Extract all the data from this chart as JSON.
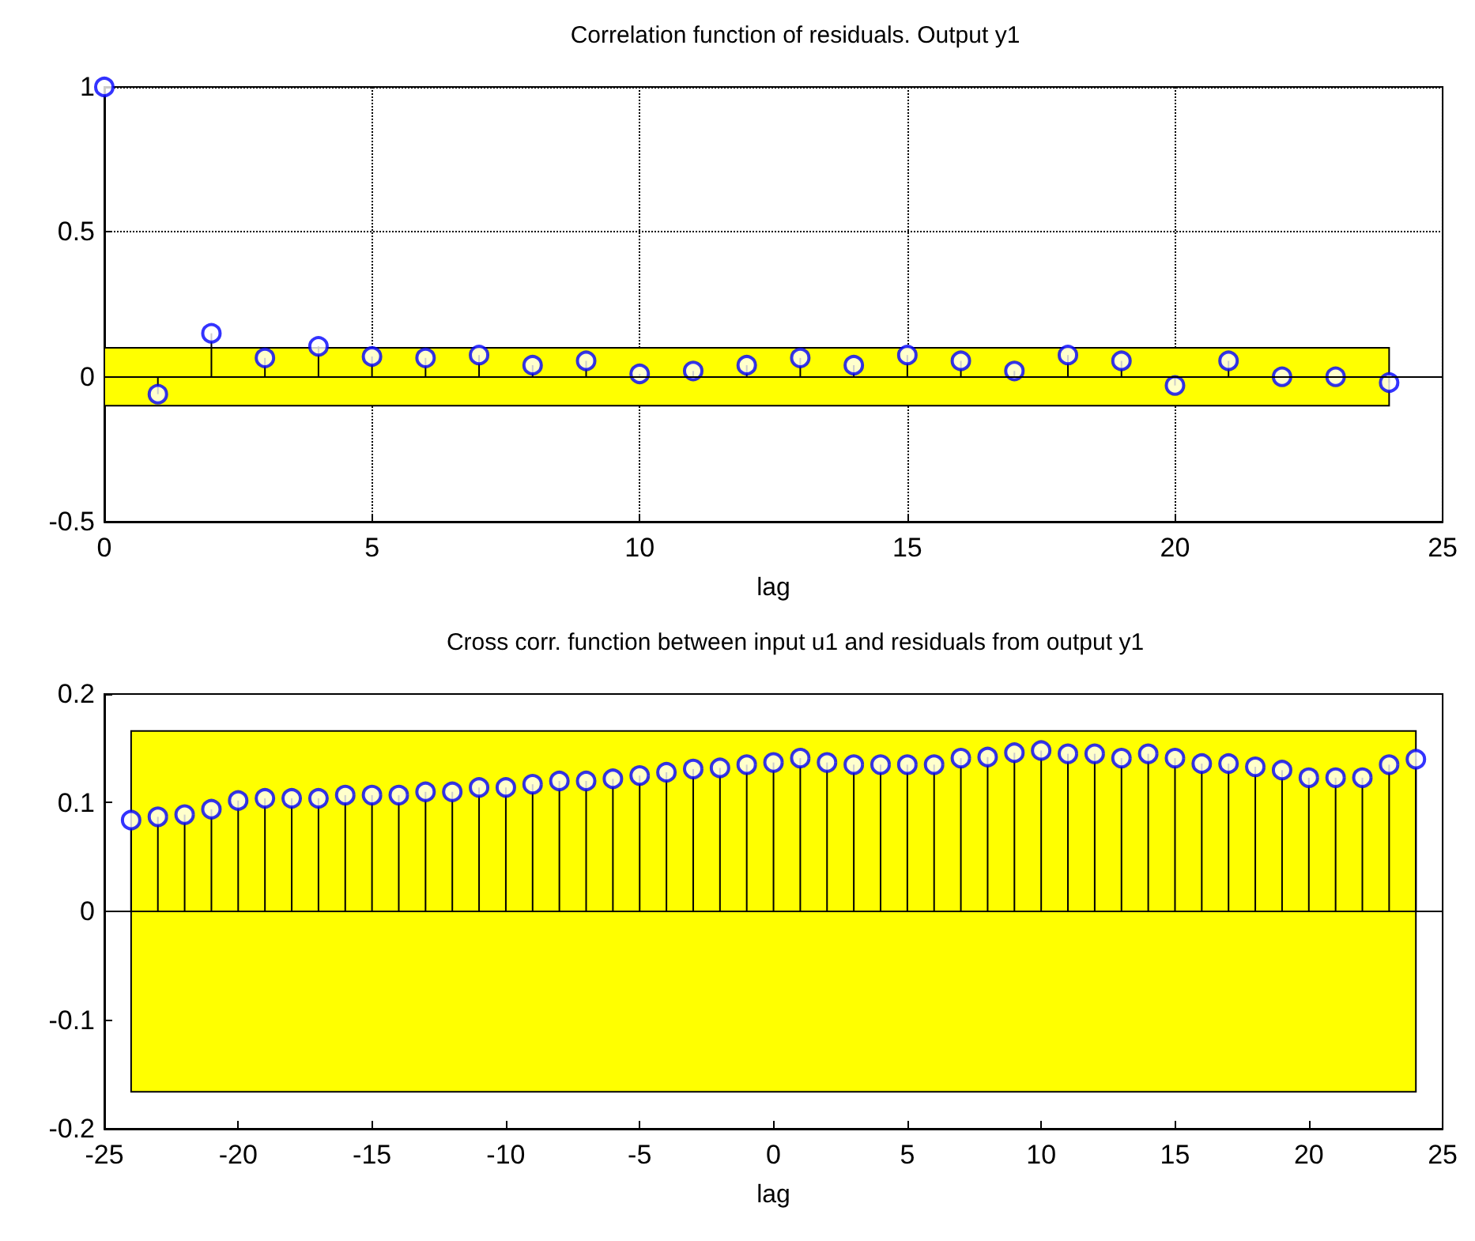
{
  "chart_data": [
    {
      "type": "lollipop",
      "title": "Correlation function of residuals. Output y1",
      "xlabel": "lag",
      "x": [
        0,
        1,
        2,
        3,
        4,
        5,
        6,
        7,
        8,
        9,
        10,
        11,
        12,
        13,
        14,
        15,
        16,
        17,
        18,
        19,
        20,
        21,
        22,
        23,
        24
      ],
      "series": [
        {
          "color": "#0000ff",
          "values": [
            1,
            -0.06,
            0.15,
            0.065,
            0.105,
            0.07,
            0.065,
            0.075,
            0.04,
            0.055,
            0.01,
            0.02,
            0.04,
            0.065,
            0.04,
            0.075,
            0.055,
            0.02,
            0.075,
            0.055,
            -0.03,
            0.055,
            0,
            0,
            -0.02
          ]
        }
      ],
      "xlim": [
        0,
        25
      ],
      "xticks": [
        0,
        5,
        10,
        15,
        20,
        25
      ],
      "ylim": [
        -0.5,
        1
      ],
      "yticks": [
        -0.5,
        0,
        0.5,
        1
      ],
      "bands": [
        {
          "axis": "y",
          "from": -0.1,
          "to": 0.1,
          "color": "#ffff00"
        }
      ],
      "ref_lines": [
        {
          "axis": "y",
          "value": 0
        }
      ],
      "grid": true,
      "marker": "circle"
    },
    {
      "type": "lollipop",
      "title": "Cross corr. function between input u1 and residuals from output y1",
      "xlabel": "lag",
      "x": [
        -24,
        -23,
        -22,
        -21,
        -20,
        -19,
        -18,
        -17,
        -16,
        -15,
        -14,
        -13,
        -12,
        -11,
        -10,
        -9,
        -8,
        -7,
        -6,
        -5,
        -4,
        -3,
        -2,
        -1,
        0,
        1,
        2,
        3,
        4,
        5,
        6,
        7,
        8,
        9,
        10,
        11,
        12,
        13,
        14,
        15,
        16,
        17,
        18,
        19,
        20,
        21,
        22,
        23,
        24
      ],
      "series": [
        {
          "color": "#0000ff",
          "values": [
            0.084,
            0.087,
            0.089,
            0.094,
            0.102,
            0.104,
            0.104,
            0.104,
            0.107,
            0.107,
            0.107,
            0.11,
            0.11,
            0.114,
            0.114,
            0.117,
            0.12,
            0.12,
            0.122,
            0.125,
            0.128,
            0.131,
            0.132,
            0.135,
            0.137,
            0.141,
            0.137,
            0.135,
            0.135,
            0.135,
            0.135,
            0.141,
            0.142,
            0.146,
            0.148,
            0.145,
            0.145,
            0.141,
            0.145,
            0.141,
            0.136,
            0.136,
            0.133,
            0.13,
            0.123,
            0.123,
            0.123,
            0.135,
            0.14
          ]
        }
      ],
      "xlim": [
        -25,
        25
      ],
      "xticks": [
        -25,
        -20,
        -15,
        -10,
        -5,
        0,
        5,
        10,
        15,
        20,
        25
      ],
      "ylim": [
        -0.2,
        0.2
      ],
      "yticks": [
        -0.2,
        -0.1,
        0,
        0.1,
        0.2
      ],
      "bands": [
        {
          "axis": "y",
          "from": -0.166,
          "to": 0.166,
          "color": "#ffff00"
        }
      ],
      "ref_lines": [
        {
          "axis": "y",
          "value": 0
        }
      ],
      "grid": false,
      "marker": "circle"
    }
  ]
}
